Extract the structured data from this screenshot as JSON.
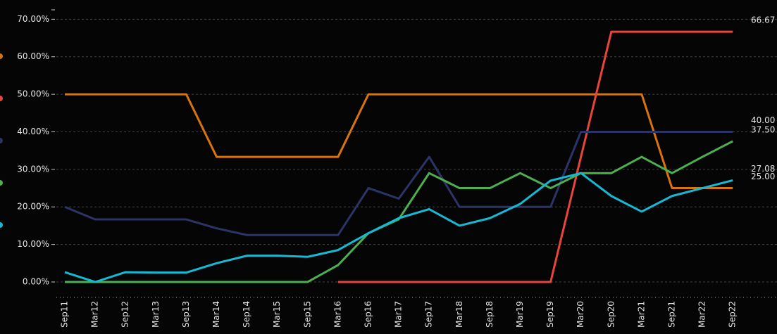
{
  "chart_data": {
    "type": "line",
    "categories": [
      "Sep11",
      "Mar12",
      "Sep12",
      "Mar13",
      "Sep13",
      "Mar14",
      "Sep14",
      "Mar15",
      "Sep15",
      "Mar16",
      "Sep16",
      "Mar17",
      "Sep17",
      "Mar18",
      "Sep18",
      "Mar19",
      "Sep19",
      "Mar20",
      "Sep20",
      "Mar21",
      "Sep21",
      "Mar22",
      "Sep22"
    ],
    "ylim": [
      -1.5,
      72.5
    ],
    "yticks": [
      {
        "value": 0,
        "label": "0.00%"
      },
      {
        "value": 10,
        "label": "10.00%"
      },
      {
        "value": 20,
        "label": "20.00%"
      },
      {
        "value": 30,
        "label": "30.00%"
      },
      {
        "value": 40,
        "label": "40.00%"
      },
      {
        "value": 50,
        "label": "50.00%"
      },
      {
        "value": 60,
        "label": "60.00%"
      },
      {
        "value": 70,
        "label": "70.00%"
      }
    ],
    "grid": true,
    "series": [
      {
        "color": "#d9730d",
        "values": [
          50,
          50,
          50,
          50,
          50,
          33.33,
          33.33,
          33.33,
          33.33,
          33.33,
          50,
          50,
          50,
          50,
          50,
          50,
          50,
          50,
          50,
          50,
          25,
          25,
          25
        ],
        "end_label": "25.00"
      },
      {
        "color": "#e8453c",
        "values": [
          null,
          null,
          null,
          null,
          null,
          null,
          null,
          null,
          null,
          0,
          0,
          0,
          0,
          0,
          0,
          0,
          0,
          33.33,
          66.67,
          66.67,
          66.67,
          66.67,
          66.67
        ],
        "end_label": "66.67"
      },
      {
        "color": "#2b3466",
        "values": [
          20,
          16.67,
          16.67,
          16.67,
          16.67,
          14.3,
          12.5,
          12.5,
          12.5,
          12.5,
          25,
          22.2,
          33.33,
          20,
          20,
          20,
          20,
          40,
          40,
          40,
          40,
          40,
          40
        ],
        "end_label": "40.00"
      },
      {
        "color": "#4caf50",
        "values": [
          0,
          0,
          0,
          0,
          0,
          0,
          0,
          0,
          0,
          4.5,
          13,
          16.7,
          29,
          25,
          25,
          29,
          25,
          29,
          29,
          33.33,
          29,
          33.33,
          37.5
        ],
        "end_label": "37.50"
      },
      {
        "color": "#17b8d4",
        "values": [
          2.6,
          0,
          2.6,
          2.5,
          2.5,
          5,
          7,
          7,
          6.7,
          8.5,
          13,
          17,
          19.4,
          15,
          17,
          20.8,
          27,
          29,
          22.9,
          18.75,
          22.9,
          25,
          27.08
        ],
        "end_label": "27.08"
      }
    ]
  }
}
